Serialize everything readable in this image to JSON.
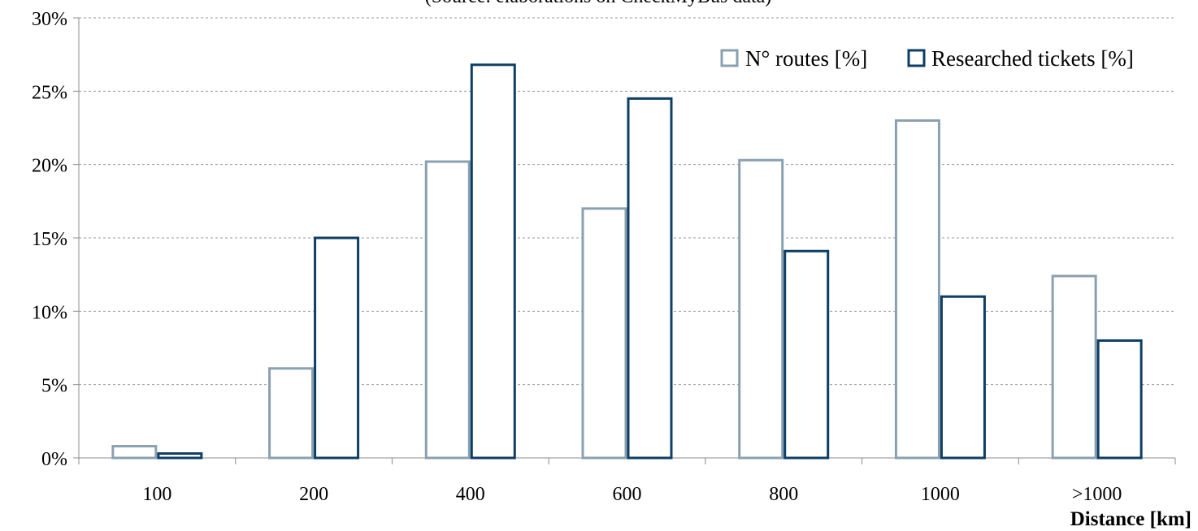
{
  "chart_data": {
    "type": "bar",
    "subtitle": "(Source: elaborations on CheckMyBus data)",
    "xlabel": "Distance [km]",
    "ylabel": "",
    "categories": [
      "100",
      "200",
      "400",
      "600",
      "800",
      "1000",
      ">1000"
    ],
    "series": [
      {
        "name": "N° routes [%]",
        "values": [
          0.8,
          6.1,
          20.2,
          17.0,
          20.3,
          23.0,
          12.4
        ],
        "color": "#8aa0b1"
      },
      {
        "name": "Researched tickets [%]",
        "values": [
          0.3,
          15.0,
          26.8,
          24.5,
          14.1,
          11.0,
          8.0
        ],
        "color": "#0c3e66"
      }
    ],
    "ylim": [
      0,
      30
    ],
    "yticks": [
      "0%",
      "5%",
      "10%",
      "15%",
      "20%",
      "25%",
      "30%"
    ],
    "grid": true,
    "legend_position": "top-right"
  }
}
